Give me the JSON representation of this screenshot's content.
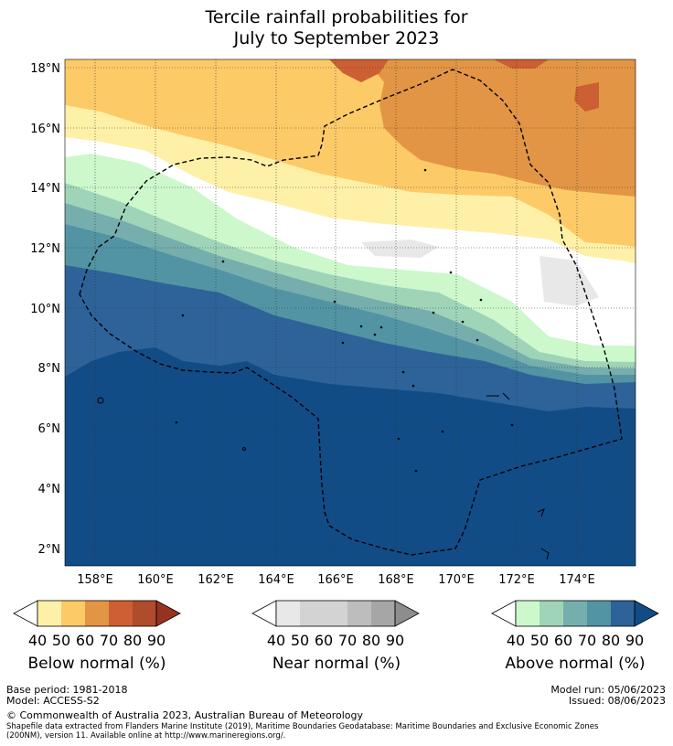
{
  "title": {
    "line1": "Tercile rainfall probabilities for",
    "line2": "July to September 2023"
  },
  "map": {
    "latitude_labels": [
      "18°N",
      "16°N",
      "14°N",
      "12°N",
      "10°N",
      "8°N",
      "6°N",
      "4°N",
      "2°N"
    ],
    "longitude_labels": [
      "158°E",
      "160°E",
      "162°E",
      "164°E",
      "166°E",
      "168°E",
      "170°E",
      "172°E",
      "174°E"
    ],
    "colors": {
      "below": [
        "#fff0a8",
        "#fdca68",
        "#e29544",
        "#cc5f33",
        "#b04b2b",
        "#973221"
      ],
      "near": [
        "#ffffff",
        "#e8e8e8",
        "#d3d3d3",
        "#bdbdbd",
        "#a6a6a6",
        "#8d8d8d"
      ],
      "above": [
        "#ccf8cc",
        "#9fd4b8",
        "#76aeae",
        "#5294a3",
        "#2d6399",
        "#124c86"
      ]
    }
  },
  "colorbars": {
    "ticks": [
      "40",
      "50",
      "60",
      "70",
      "80",
      "90"
    ],
    "below_label": "Below normal (%)",
    "near_label": "Near normal (%)",
    "above_label": "Above normal (%)"
  },
  "footer": {
    "base_period": "Base period: 1981-2018",
    "model": "Model: ACCESS-S2",
    "model_run": "Model run: 05/06/2023",
    "issued": "Issued: 08/06/2023",
    "copyright": "© Commonwealth of Australia 2023, Australian Bureau of Meteorology",
    "shapefile_line1": "Shapefile data extracted from Flanders Marine Institute (2019), Maritime Boundaries Geodatabase: Maritime Boundaries and Exclusive Economic Zones",
    "shapefile_line2": "(200NM), version 11. Available online at http://www.marineregions.org/."
  }
}
